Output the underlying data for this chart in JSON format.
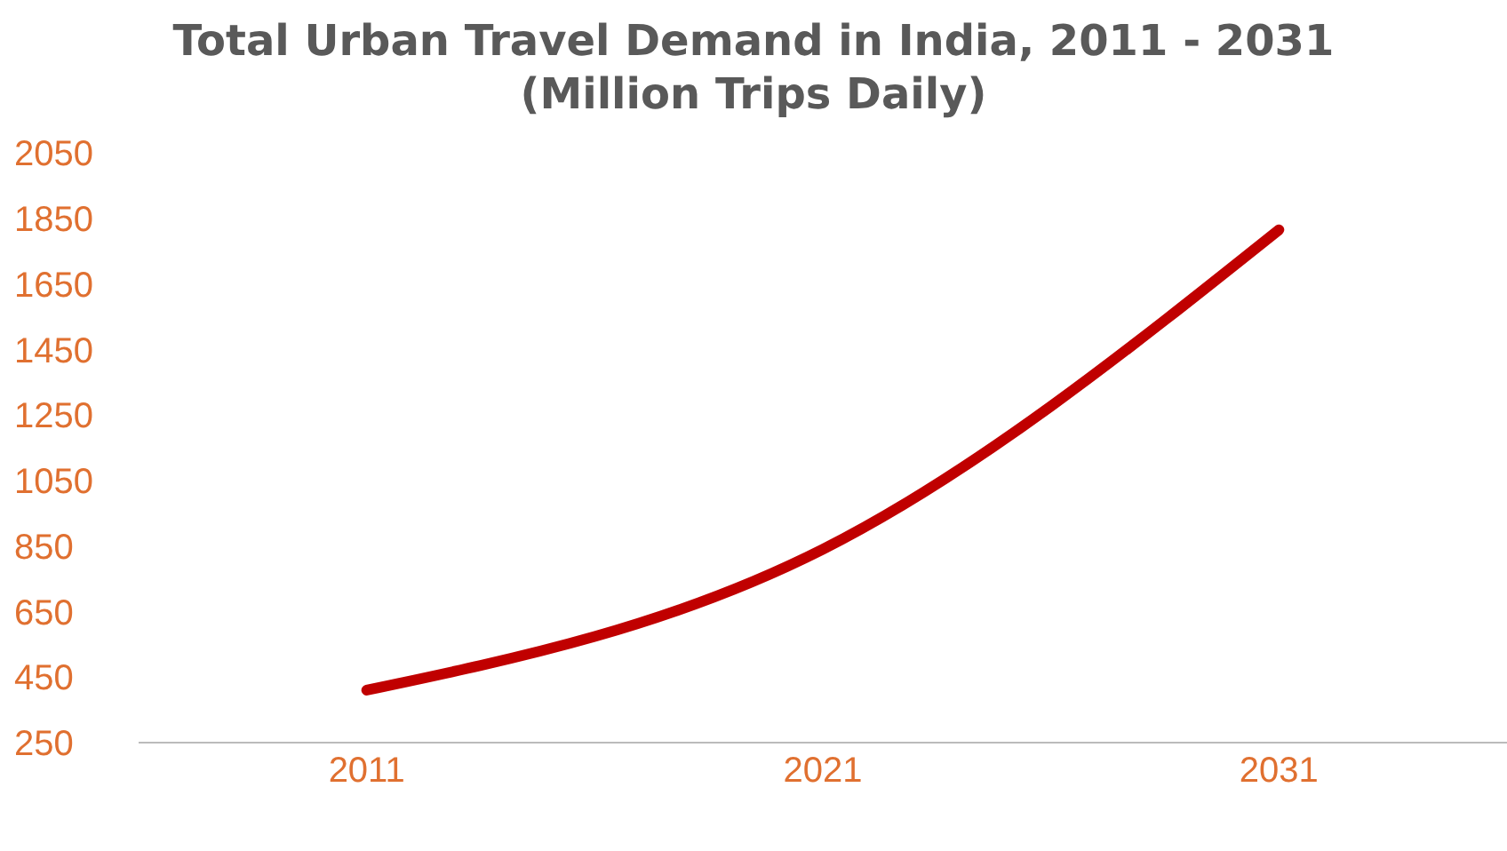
{
  "chart_data": {
    "type": "line",
    "title": "Total Urban Travel Demand in India, 2011 - 2031",
    "subtitle": "(Million Trips Daily)",
    "categories": [
      "2011",
      "2021",
      "2031"
    ],
    "series": [
      {
        "color": "#c00000",
        "values": [
          410,
          840,
          1815
        ]
      }
    ],
    "ylim": [
      250,
      2050
    ],
    "yticks": [
      250,
      450,
      650,
      850,
      1050,
      1250,
      1450,
      1650,
      1850,
      2050
    ],
    "grid": false,
    "legend": false,
    "marker": "none",
    "line_style": "solid"
  }
}
